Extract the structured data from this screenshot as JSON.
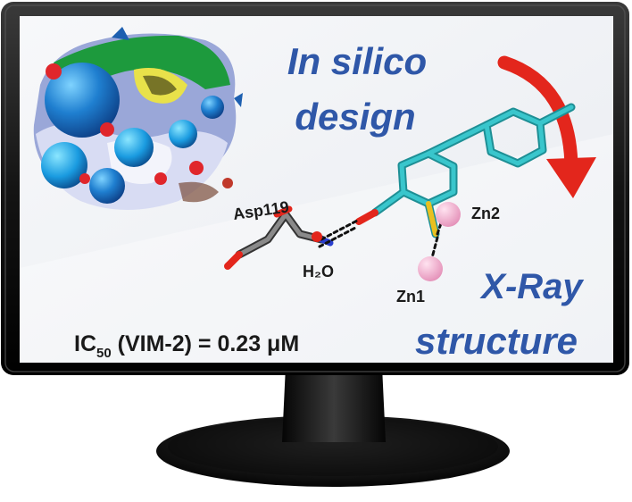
{
  "headline": {
    "line1": "In silico",
    "line2": "design"
  },
  "result": {
    "line1": "X-Ray",
    "line2": "structure"
  },
  "labels": {
    "residue": "Asp119",
    "water": "H₂O",
    "zinc_a": "Zn2",
    "zinc_b": "Zn1"
  },
  "activity": {
    "ic_prefix": "IC",
    "ic_subscript": "50",
    "rest": " (VIM-2) = 0.23 μM"
  },
  "colors": {
    "text_blue": "#2f57a8",
    "arrow_red": "#e3261c",
    "ligand_teal": "#2fb9bf",
    "zinc_pink": "#f0a9c9",
    "monitor_frame": "#1c1c1c"
  }
}
